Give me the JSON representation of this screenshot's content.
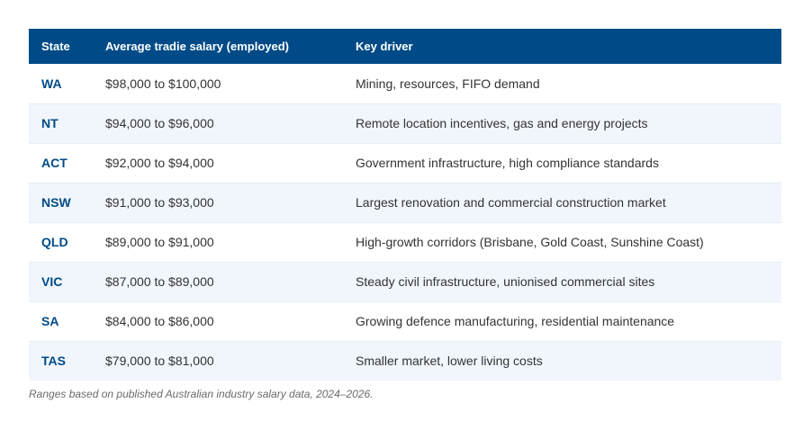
{
  "colors": {
    "header_bg": "#004b87",
    "header_text": "#ffffff",
    "state_text": "#004b87",
    "row_alt_bg": "#f1f6fc",
    "note_text": "#6b6b6b"
  },
  "table": {
    "headers": [
      "State",
      "Average tradie salary (employed)",
      "Key driver"
    ],
    "rows": [
      {
        "state": "WA",
        "salary": "$98,000 to $100,000",
        "driver": "Mining, resources, FIFO demand"
      },
      {
        "state": "NT",
        "salary": "$94,000 to $96,000",
        "driver": "Remote location incentives, gas and energy projects"
      },
      {
        "state": "ACT",
        "salary": "$92,000 to $94,000",
        "driver": "Government infrastructure, high compliance standards"
      },
      {
        "state": "NSW",
        "salary": "$91,000 to $93,000",
        "driver": "Largest renovation and commercial construction market"
      },
      {
        "state": "QLD",
        "salary": "$89,000 to $91,000",
        "driver": "High-growth corridors (Brisbane, Gold Coast, Sunshine Coast)"
      },
      {
        "state": "VIC",
        "salary": "$87,000 to $89,000",
        "driver": "Steady civil infrastructure, unionised commercial sites"
      },
      {
        "state": "SA",
        "salary": "$84,000 to $86,000",
        "driver": "Growing defence manufacturing, residential maintenance"
      },
      {
        "state": "TAS",
        "salary": "$79,000 to $81,000",
        "driver": "Smaller market, lower living costs"
      }
    ]
  },
  "note": "Ranges based on published Australian industry salary data, 2024–2026."
}
